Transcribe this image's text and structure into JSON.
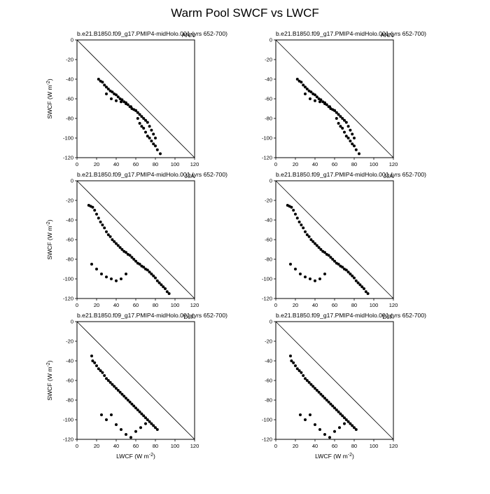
{
  "figure": {
    "title": "Warm Pool SWCF vs LWCF"
  },
  "chart_data": [
    {
      "type": "scatter",
      "title": "b.e21.B1850.f09_g17.PMIP4-midHolo.001 (yrs 652-700)",
      "corner_label": "ANN",
      "xlabel": "",
      "ylabel": "SWCF (W m^-2)",
      "xlim": [
        0,
        120
      ],
      "ylim": [
        -120,
        0
      ],
      "xticks": [
        "0",
        "20",
        "40",
        "60",
        "80",
        "100",
        "120"
      ],
      "yticks": [
        "0",
        "-20",
        "-40",
        "-60",
        "-80",
        "-100",
        "-120"
      ],
      "reference_line": "y = -x",
      "x": [
        22,
        24,
        26,
        28,
        30,
        32,
        34,
        36,
        38,
        40,
        42,
        44,
        46,
        48,
        50,
        52,
        54,
        56,
        58,
        60,
        62,
        64,
        66,
        68,
        70,
        72,
        74,
        76,
        78,
        80,
        30,
        35,
        40,
        45,
        50,
        55,
        60,
        62,
        64,
        66,
        68,
        70,
        72,
        74,
        76,
        78,
        80,
        82,
        85
      ],
      "y": [
        -40,
        -42,
        -43,
        -46,
        -48,
        -50,
        -52,
        -53,
        -55,
        -56,
        -58,
        -60,
        -61,
        -63,
        -64,
        -66,
        -68,
        -70,
        -71,
        -72,
        -74,
        -76,
        -78,
        -80,
        -82,
        -84,
        -88,
        -92,
        -96,
        -100,
        -55,
        -60,
        -62,
        -63,
        -65,
        -68,
        -72,
        -80,
        -85,
        -88,
        -90,
        -94,
        -98,
        -100,
        -103,
        -106,
        -108,
        -112,
        -116
      ]
    },
    {
      "type": "scatter",
      "title": "b.e21.B1850.f09_g17.PMIP4-midHolo.001 (yrs 652-700)",
      "corner_label": "ANN",
      "xlabel": "",
      "ylabel": "",
      "xlim": [
        0,
        120
      ],
      "ylim": [
        -120,
        0
      ],
      "xticks": [
        "0",
        "20",
        "40",
        "60",
        "80",
        "100",
        "120"
      ],
      "yticks": [
        "0",
        "-20",
        "-40",
        "-60",
        "-80",
        "-100",
        "-120"
      ],
      "reference_line": "y = -x",
      "x": [
        22,
        24,
        26,
        28,
        30,
        32,
        34,
        36,
        38,
        40,
        42,
        44,
        46,
        48,
        50,
        52,
        54,
        56,
        58,
        60,
        62,
        64,
        66,
        68,
        70,
        72,
        74,
        76,
        78,
        80,
        30,
        35,
        40,
        45,
        50,
        55,
        60,
        62,
        64,
        66,
        68,
        70,
        72,
        74,
        76,
        78,
        80,
        82,
        85
      ],
      "y": [
        -40,
        -42,
        -43,
        -46,
        -48,
        -50,
        -52,
        -53,
        -55,
        -56,
        -58,
        -60,
        -61,
        -63,
        -64,
        -66,
        -68,
        -70,
        -71,
        -72,
        -74,
        -76,
        -78,
        -80,
        -82,
        -84,
        -88,
        -92,
        -96,
        -100,
        -55,
        -60,
        -62,
        -63,
        -65,
        -68,
        -72,
        -80,
        -85,
        -88,
        -90,
        -94,
        -98,
        -100,
        -103,
        -106,
        -108,
        -112,
        -116
      ]
    },
    {
      "type": "scatter",
      "title": "b.e21.B1850.f09_g17.PMIP4-midHolo.001 (yrs 652-700)",
      "corner_label": "JJA",
      "xlabel": "",
      "ylabel": "SWCF (W m^-2)",
      "xlim": [
        0,
        120
      ],
      "ylim": [
        -120,
        0
      ],
      "xticks": [
        "0",
        "20",
        "40",
        "60",
        "80",
        "100",
        "120"
      ],
      "yticks": [
        "0",
        "-20",
        "-40",
        "-60",
        "-80",
        "-100",
        "-120"
      ],
      "reference_line": "y = -x",
      "x": [
        12,
        14,
        16,
        18,
        20,
        22,
        24,
        26,
        28,
        30,
        32,
        34,
        36,
        38,
        40,
        42,
        44,
        46,
        48,
        50,
        52,
        54,
        56,
        58,
        60,
        62,
        64,
        66,
        68,
        70,
        72,
        74,
        76,
        78,
        80,
        82,
        84,
        86,
        88,
        90,
        92,
        94,
        15,
        20,
        25,
        30,
        35,
        40,
        45,
        50
      ],
      "y": [
        -25,
        -26,
        -27,
        -30,
        -34,
        -38,
        -42,
        -45,
        -48,
        -52,
        -55,
        -57,
        -60,
        -62,
        -64,
        -66,
        -68,
        -70,
        -72,
        -73,
        -75,
        -76,
        -78,
        -80,
        -82,
        -84,
        -85,
        -87,
        -88,
        -90,
        -91,
        -93,
        -95,
        -97,
        -99,
        -102,
        -104,
        -106,
        -108,
        -110,
        -113,
        -115,
        -85,
        -90,
        -95,
        -98,
        -100,
        -102,
        -100,
        -95
      ]
    },
    {
      "type": "scatter",
      "title": "b.e21.B1850.f09_g17.PMIP4-midHolo.001 (yrs 652-700)",
      "corner_label": "JJA",
      "xlabel": "",
      "ylabel": "",
      "xlim": [
        0,
        120
      ],
      "ylim": [
        -120,
        0
      ],
      "xticks": [
        "0",
        "20",
        "40",
        "60",
        "80",
        "100",
        "120"
      ],
      "yticks": [
        "0",
        "-20",
        "-40",
        "-60",
        "-80",
        "-100",
        "-120"
      ],
      "reference_line": "y = -x",
      "x": [
        12,
        14,
        16,
        18,
        20,
        22,
        24,
        26,
        28,
        30,
        32,
        34,
        36,
        38,
        40,
        42,
        44,
        46,
        48,
        50,
        52,
        54,
        56,
        58,
        60,
        62,
        64,
        66,
        68,
        70,
        72,
        74,
        76,
        78,
        80,
        82,
        84,
        86,
        88,
        90,
        92,
        94,
        15,
        20,
        25,
        30,
        35,
        40,
        45,
        50
      ],
      "y": [
        -25,
        -26,
        -27,
        -30,
        -34,
        -38,
        -42,
        -45,
        -48,
        -52,
        -55,
        -57,
        -60,
        -62,
        -64,
        -66,
        -68,
        -70,
        -72,
        -73,
        -75,
        -76,
        -78,
        -80,
        -82,
        -84,
        -85,
        -87,
        -88,
        -90,
        -91,
        -93,
        -95,
        -97,
        -99,
        -102,
        -104,
        -106,
        -108,
        -110,
        -113,
        -115,
        -85,
        -90,
        -95,
        -98,
        -100,
        -102,
        -100,
        -95
      ]
    },
    {
      "type": "scatter",
      "title": "b.e21.B1850.f09_g17.PMIP4-midHolo.001 (yrs 652-700)",
      "corner_label": "DJF",
      "xlabel": "LWCF (W m^-2)",
      "ylabel": "SWCF (W m^-2)",
      "xlim": [
        0,
        120
      ],
      "ylim": [
        -120,
        0
      ],
      "xticks": [
        "0",
        "20",
        "40",
        "60",
        "80",
        "100",
        "120"
      ],
      "yticks": [
        "0",
        "-20",
        "-40",
        "-60",
        "-80",
        "-100",
        "-120"
      ],
      "reference_line": "y = -x",
      "x": [
        15,
        16,
        18,
        20,
        22,
        24,
        26,
        28,
        30,
        32,
        34,
        36,
        38,
        40,
        42,
        44,
        46,
        48,
        50,
        52,
        54,
        56,
        58,
        60,
        62,
        64,
        66,
        68,
        70,
        72,
        74,
        76,
        78,
        80,
        82,
        25,
        30,
        35,
        40,
        45,
        50,
        55,
        60,
        65,
        70
      ],
      "y": [
        -35,
        -40,
        -42,
        -45,
        -48,
        -50,
        -52,
        -55,
        -58,
        -60,
        -62,
        -64,
        -66,
        -68,
        -70,
        -72,
        -74,
        -76,
        -78,
        -80,
        -82,
        -84,
        -86,
        -88,
        -90,
        -92,
        -94,
        -96,
        -98,
        -100,
        -102,
        -104,
        -106,
        -108,
        -110,
        -95,
        -100,
        -95,
        -105,
        -110,
        -115,
        -118,
        -112,
        -108,
        -104
      ]
    },
    {
      "type": "scatter",
      "title": "b.e21.B1850.f09_g17.PMIP4-midHolo.001 (yrs 652-700)",
      "corner_label": "DJF",
      "xlabel": "LWCF (W m^-2)",
      "ylabel": "",
      "xlim": [
        0,
        120
      ],
      "ylim": [
        -120,
        0
      ],
      "xticks": [
        "0",
        "20",
        "40",
        "60",
        "80",
        "100",
        "120"
      ],
      "yticks": [
        "0",
        "-20",
        "-40",
        "-60",
        "-80",
        "-100",
        "-120"
      ],
      "reference_line": "y = -x",
      "x": [
        15,
        16,
        18,
        20,
        22,
        24,
        26,
        28,
        30,
        32,
        34,
        36,
        38,
        40,
        42,
        44,
        46,
        48,
        50,
        52,
        54,
        56,
        58,
        60,
        62,
        64,
        66,
        68,
        70,
        72,
        74,
        76,
        78,
        80,
        82,
        25,
        30,
        35,
        40,
        45,
        50,
        55,
        60,
        65,
        70
      ],
      "y": [
        -35,
        -40,
        -42,
        -45,
        -48,
        -50,
        -52,
        -55,
        -58,
        -60,
        -62,
        -64,
        -66,
        -68,
        -70,
        -72,
        -74,
        -76,
        -78,
        -80,
        -82,
        -84,
        -86,
        -88,
        -90,
        -92,
        -94,
        -96,
        -98,
        -100,
        -102,
        -104,
        -106,
        -108,
        -110,
        -95,
        -100,
        -95,
        -105,
        -110,
        -115,
        -118,
        -112,
        -108,
        -104
      ]
    }
  ]
}
